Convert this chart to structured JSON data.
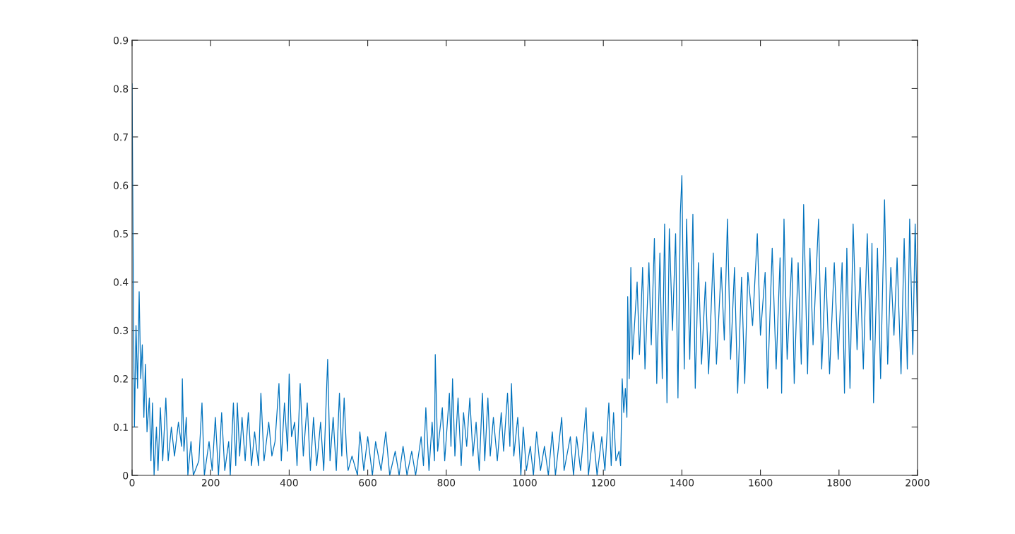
{
  "chart_data": {
    "type": "line",
    "xlim": [
      0,
      2000
    ],
    "ylim": [
      0,
      0.9
    ],
    "xticks": [
      0,
      200,
      400,
      600,
      800,
      1000,
      1200,
      1400,
      1600,
      1800,
      2000
    ],
    "yticks": [
      0,
      0.1,
      0.2,
      0.3,
      0.4,
      0.5,
      0.6,
      0.7,
      0.8,
      0.9
    ],
    "grid": false,
    "marker": "none",
    "line_style": "solid",
    "series": [
      {
        "color": "#0072bd",
        "x": [
          0,
          4,
          6,
          10,
          14,
          18,
          22,
          26,
          30,
          34,
          38,
          44,
          48,
          52,
          56,
          62,
          66,
          72,
          78,
          86,
          92,
          100,
          108,
          118,
          126,
          128,
          132,
          138,
          142,
          150,
          156,
          170,
          178,
          184,
          196,
          204,
          212,
          220,
          228,
          236,
          246,
          250,
          258,
          264,
          268,
          274,
          280,
          288,
          296,
          304,
          312,
          322,
          328,
          336,
          348,
          356,
          364,
          374,
          380,
          388,
          396,
          400,
          406,
          414,
          420,
          428,
          436,
          446,
          454,
          462,
          470,
          480,
          488,
          498,
          504,
          512,
          520,
          528,
          534,
          540,
          546,
          550,
          560,
          574,
          580,
          590,
          600,
          612,
          620,
          634,
          646,
          656,
          670,
          680,
          690,
          700,
          712,
          722,
          736,
          742,
          748,
          756,
          764,
          770,
          772,
          778,
          790,
          796,
          808,
          812,
          816,
          822,
          830,
          838,
          844,
          852,
          860,
          868,
          876,
          884,
          892,
          898,
          906,
          912,
          920,
          930,
          940,
          946,
          956,
          962,
          966,
          972,
          982,
          990,
          996,
          1004,
          1014,
          1022,
          1030,
          1040,
          1050,
          1060,
          1070,
          1078,
          1094,
          1100,
          1116,
          1124,
          1132,
          1142,
          1156,
          1162,
          1174,
          1184,
          1196,
          1204,
          1214,
          1220,
          1226,
          1232,
          1240,
          1244,
          1248,
          1252,
          1256,
          1260,
          1262,
          1266,
          1270,
          1274,
          1286,
          1292,
          1300,
          1306,
          1316,
          1322,
          1330,
          1336,
          1344,
          1350,
          1356,
          1362,
          1368,
          1376,
          1384,
          1390,
          1396,
          1400,
          1406,
          1412,
          1420,
          1428,
          1434,
          1442,
          1450,
          1460,
          1468,
          1480,
          1488,
          1500,
          1508,
          1516,
          1524,
          1534,
          1542,
          1552,
          1560,
          1568,
          1580,
          1592,
          1600,
          1612,
          1618,
          1630,
          1640,
          1650,
          1654,
          1660,
          1668,
          1680,
          1686,
          1696,
          1704,
          1710,
          1720,
          1726,
          1734,
          1748,
          1756,
          1766,
          1776,
          1788,
          1798,
          1808,
          1814,
          1820,
          1828,
          1836,
          1846,
          1854,
          1862,
          1872,
          1880,
          1884,
          1888,
          1898,
          1906,
          1916,
          1924,
          1932,
          1940,
          1948,
          1958,
          1966,
          1974,
          1980,
          1988,
          1994,
          2000
        ],
        "values": [
          0.81,
          0.3,
          0.1,
          0.31,
          0.18,
          0.38,
          0.2,
          0.27,
          0.12,
          0.23,
          0.09,
          0.16,
          0.03,
          0.15,
          0.0,
          0.1,
          0.01,
          0.14,
          0.03,
          0.16,
          0.03,
          0.1,
          0.04,
          0.11,
          0.06,
          0.2,
          0.05,
          0.12,
          0.0,
          0.07,
          0.0,
          0.03,
          0.15,
          0.0,
          0.07,
          0.01,
          0.12,
          0.0,
          0.13,
          0.01,
          0.07,
          0.0,
          0.15,
          0.02,
          0.15,
          0.04,
          0.12,
          0.03,
          0.13,
          0.02,
          0.09,
          0.02,
          0.17,
          0.03,
          0.11,
          0.04,
          0.07,
          0.19,
          0.03,
          0.15,
          0.05,
          0.21,
          0.08,
          0.11,
          0.02,
          0.19,
          0.04,
          0.15,
          0.01,
          0.12,
          0.02,
          0.11,
          0.01,
          0.24,
          0.03,
          0.12,
          0.01,
          0.17,
          0.04,
          0.16,
          0.05,
          0.01,
          0.04,
          0.0,
          0.09,
          0.01,
          0.08,
          0.0,
          0.07,
          0.01,
          0.09,
          0.0,
          0.05,
          0.0,
          0.06,
          0.0,
          0.05,
          0.0,
          0.08,
          0.02,
          0.14,
          0.01,
          0.11,
          0.03,
          0.25,
          0.05,
          0.14,
          0.03,
          0.17,
          0.06,
          0.2,
          0.04,
          0.16,
          0.02,
          0.13,
          0.06,
          0.16,
          0.04,
          0.11,
          0.01,
          0.17,
          0.03,
          0.16,
          0.04,
          0.12,
          0.03,
          0.13,
          0.05,
          0.17,
          0.06,
          0.19,
          0.04,
          0.12,
          0.0,
          0.1,
          0.01,
          0.06,
          0.0,
          0.09,
          0.01,
          0.06,
          0.0,
          0.09,
          0.0,
          0.12,
          0.01,
          0.08,
          0.0,
          0.08,
          0.01,
          0.14,
          0.0,
          0.09,
          0.0,
          0.08,
          0.01,
          0.15,
          0.02,
          0.13,
          0.03,
          0.05,
          0.02,
          0.2,
          0.13,
          0.18,
          0.12,
          0.37,
          0.2,
          0.43,
          0.24,
          0.4,
          0.25,
          0.43,
          0.22,
          0.44,
          0.27,
          0.49,
          0.19,
          0.46,
          0.2,
          0.52,
          0.15,
          0.51,
          0.3,
          0.5,
          0.16,
          0.54,
          0.62,
          0.22,
          0.53,
          0.24,
          0.54,
          0.18,
          0.44,
          0.23,
          0.4,
          0.21,
          0.46,
          0.23,
          0.43,
          0.28,
          0.53,
          0.24,
          0.43,
          0.17,
          0.41,
          0.19,
          0.42,
          0.31,
          0.5,
          0.29,
          0.42,
          0.18,
          0.47,
          0.22,
          0.45,
          0.17,
          0.53,
          0.24,
          0.45,
          0.19,
          0.44,
          0.23,
          0.56,
          0.21,
          0.47,
          0.27,
          0.53,
          0.22,
          0.43,
          0.21,
          0.44,
          0.24,
          0.44,
          0.17,
          0.47,
          0.18,
          0.52,
          0.26,
          0.43,
          0.22,
          0.5,
          0.28,
          0.48,
          0.15,
          0.47,
          0.2,
          0.57,
          0.23,
          0.43,
          0.29,
          0.45,
          0.21,
          0.49,
          0.22,
          0.53,
          0.25,
          0.52,
          0.3
        ]
      }
    ]
  }
}
